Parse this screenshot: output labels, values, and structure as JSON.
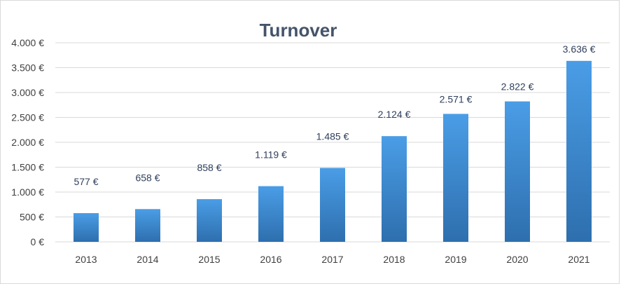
{
  "chart_data": {
    "type": "bar",
    "title": "Turnover",
    "categories": [
      "2013",
      "2014",
      "2015",
      "2016",
      "2017",
      "2018",
      "2019",
      "2020",
      "2021"
    ],
    "values": [
      577,
      658,
      858,
      1119,
      1485,
      2124,
      2571,
      2822,
      3636
    ],
    "data_labels": [
      "577 €",
      "658 €",
      "858 €",
      "1.119 €",
      "1.485 €",
      "2.124 €",
      "2.571 €",
      "2.822 €",
      "3.636 €"
    ],
    "ylim": [
      0,
      4000
    ],
    "y_ticks": [
      0,
      500,
      1000,
      1500,
      2000,
      2500,
      3000,
      3500,
      4000
    ],
    "y_tick_labels": [
      "0 €",
      "500 €",
      "1.000 €",
      "1.500 €",
      "2.000 €",
      "2.500 €",
      "3.000 €",
      "3.500 €",
      "4.000 €"
    ],
    "grid": true,
    "legend": "none",
    "bar_color_top": "#4a9de6",
    "bar_color_bottom": "#2e6fae",
    "title_color": "#44546a"
  }
}
